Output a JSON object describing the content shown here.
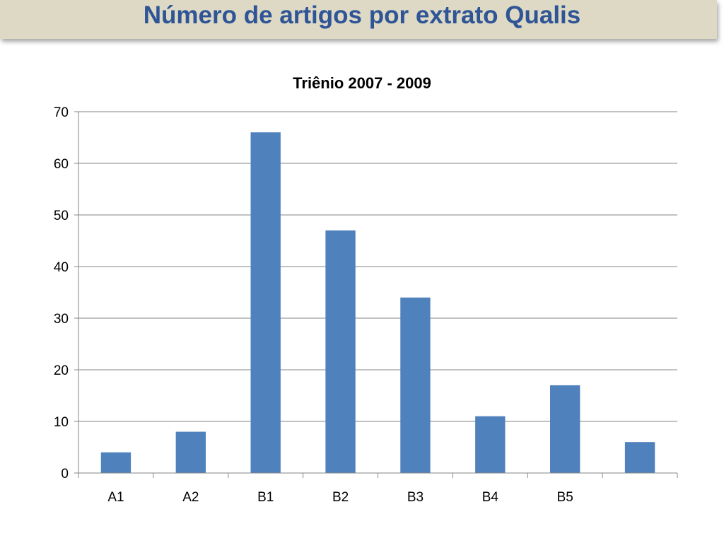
{
  "slide": {
    "title": "Número de artigos por extrato Qualis"
  },
  "colors": {
    "title_bar": "#ddd9c4",
    "title_text": "#2f5597",
    "bar": "#4f81bd",
    "gridline": "#868686"
  },
  "chart_data": {
    "type": "bar",
    "title": "Triênio 2007 - 2009",
    "categories": [
      "A1",
      "A2",
      "B1",
      "B2",
      "B3",
      "B4",
      "B5",
      ""
    ],
    "values": [
      4,
      8,
      66,
      47,
      34,
      11,
      17,
      6
    ],
    "xlabel": "",
    "ylabel": "",
    "ylim": [
      0,
      70
    ],
    "yticks": [
      0,
      10,
      20,
      30,
      40,
      50,
      60,
      70
    ],
    "grid": true,
    "legend": "none"
  }
}
